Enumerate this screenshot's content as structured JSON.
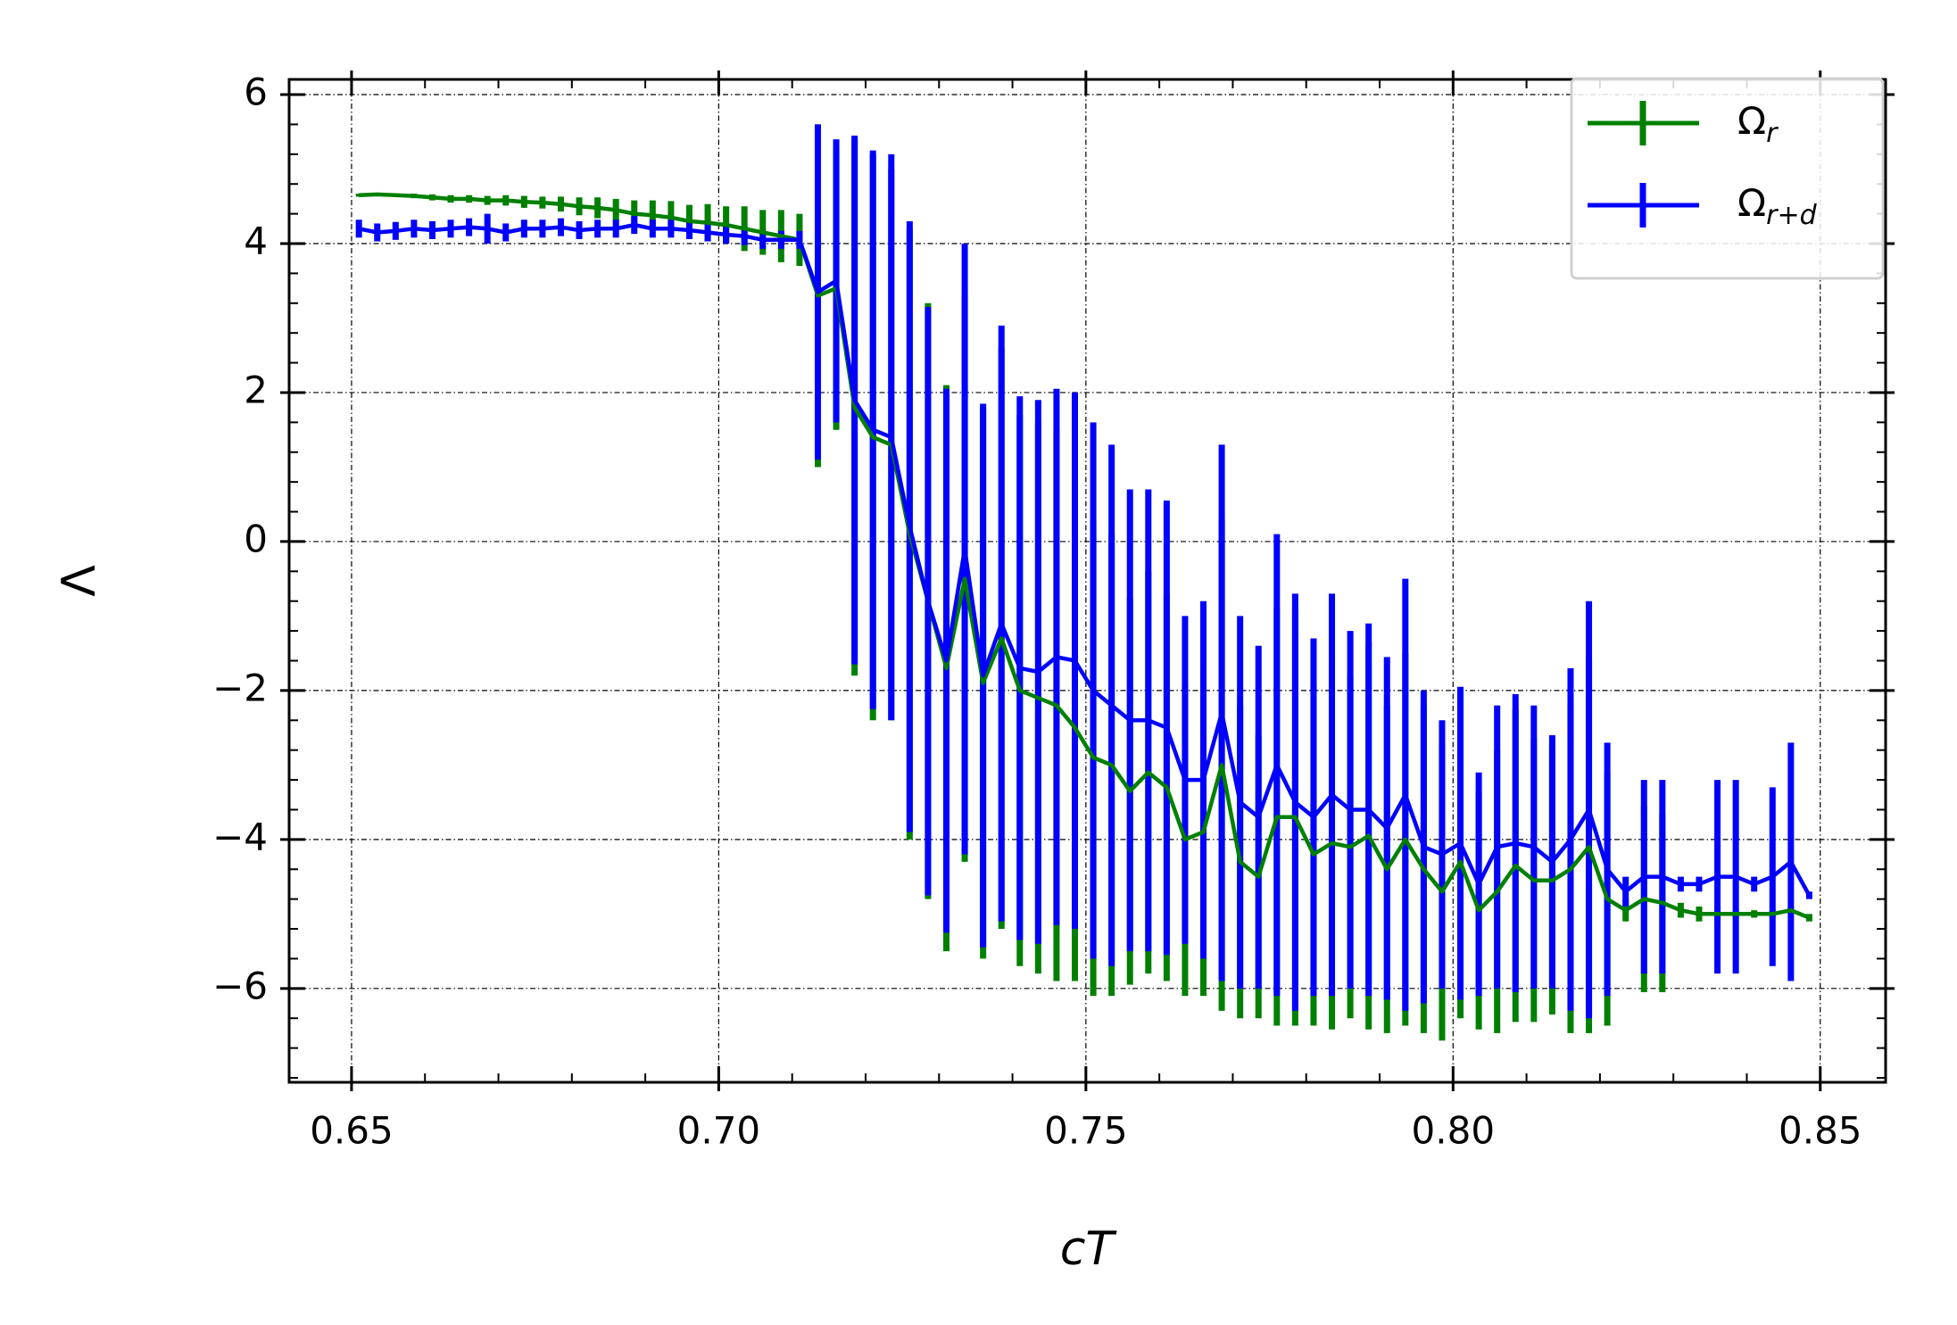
{
  "chart_data": {
    "type": "errorbar_line",
    "xlabel": "cT",
    "ylabel": "Λ",
    "xlim": [
      0.6415,
      0.8589
    ],
    "ylim": [
      -7.26,
      6.204
    ],
    "xticks": [
      0.65,
      {
        "value": 0.7,
        "label": "0.70"
      },
      0.75,
      {
        "value": 0.8,
        "label": "0.80"
      },
      0.85
    ],
    "yticks": [
      {
        "value": -6,
        "label": "−6"
      },
      {
        "value": -4,
        "label": "−4"
      },
      {
        "value": -2,
        "label": "−2"
      },
      0,
      2,
      4,
      6
    ],
    "grid": true,
    "legend": "upper right",
    "x": [
      0.651,
      0.6535,
      0.656,
      0.6585,
      0.661,
      0.6635,
      0.666,
      0.6685,
      0.671,
      0.6735,
      0.676,
      0.6785,
      0.681,
      0.6835,
      0.686,
      0.6885,
      0.691,
      0.6935,
      0.696,
      0.6985,
      0.701,
      0.7035,
      0.706,
      0.7085,
      0.711,
      0.7135,
      0.716,
      0.7185,
      0.721,
      0.7235,
      0.726,
      0.7285,
      0.731,
      0.7335,
      0.736,
      0.7385,
      0.741,
      0.7435,
      0.746,
      0.7485,
      0.751,
      0.7535,
      0.756,
      0.7585,
      0.761,
      0.7635,
      0.766,
      0.7685,
      0.771,
      0.7735,
      0.776,
      0.7785,
      0.781,
      0.7835,
      0.786,
      0.7885,
      0.791,
      0.7935,
      0.796,
      0.7985,
      0.801,
      0.8035,
      0.806,
      0.8085,
      0.811,
      0.8135,
      0.816,
      0.8185,
      0.821,
      0.8235,
      0.826,
      0.8285,
      0.831,
      0.8335,
      0.836,
      0.8385,
      0.841,
      0.8435,
      0.846,
      0.8485
    ],
    "series": [
      {
        "name": "Ωr",
        "color": "#008000",
        "values": [
          4.65,
          4.66,
          4.65,
          4.64,
          4.62,
          4.6,
          4.6,
          4.58,
          4.58,
          4.56,
          4.55,
          4.53,
          4.5,
          4.48,
          4.45,
          4.4,
          4.38,
          4.35,
          4.3,
          4.28,
          4.25,
          4.2,
          4.15,
          4.1,
          4.05,
          3.3,
          3.4,
          1.8,
          1.4,
          1.3,
          0.1,
          -0.8,
          -1.7,
          -0.5,
          -1.9,
          -1.3,
          -2.0,
          -2.1,
          -2.2,
          -2.5,
          -2.9,
          -3.0,
          -3.35,
          -3.1,
          -3.3,
          -4.0,
          -3.9,
          -3.0,
          -4.3,
          -4.5,
          -3.7,
          -3.7,
          -4.2,
          -4.05,
          -4.1,
          -3.95,
          -4.4,
          -4.0,
          -4.4,
          -4.7,
          -4.3,
          -4.95,
          -4.7,
          -4.35,
          -4.55,
          -4.55,
          -4.4,
          -4.1,
          -4.8,
          -4.95,
          -4.8,
          -4.85,
          -4.95,
          -5.0,
          -5.0,
          -5.0,
          -5.0,
          -5.0,
          -4.95,
          -5.05
        ],
        "errors": [
          0.02,
          0.02,
          0.02,
          0.03,
          0.04,
          0.05,
          0.05,
          0.06,
          0.07,
          0.08,
          0.08,
          0.1,
          0.12,
          0.14,
          0.15,
          0.18,
          0.2,
          0.22,
          0.22,
          0.25,
          0.25,
          0.3,
          0.3,
          0.35,
          0.35,
          2.3,
          1.9,
          3.6,
          3.8,
          3.7,
          4.1,
          4.0,
          3.8,
          3.8,
          3.7,
          3.9,
          3.7,
          3.7,
          3.7,
          3.4,
          3.2,
          3.1,
          2.6,
          2.7,
          2.6,
          2.1,
          2.2,
          3.3,
          2.1,
          1.9,
          2.8,
          2.8,
          2.3,
          2.5,
          2.3,
          2.6,
          2.2,
          2.5,
          2.2,
          2.0,
          2.1,
          1.6,
          1.9,
          2.1,
          1.9,
          1.8,
          2.2,
          2.5,
          1.7,
          0.15,
          1.25,
          1.2,
          0.1,
          0.1,
          0.1,
          0.05,
          0.05,
          0.05,
          0.05,
          0.05
        ]
      },
      {
        "name": "Ωr+d",
        "color": "#0000ff",
        "values": [
          4.2,
          4.15,
          4.17,
          4.2,
          4.18,
          4.2,
          4.22,
          4.2,
          4.15,
          4.2,
          4.2,
          4.22,
          4.18,
          4.2,
          4.2,
          4.25,
          4.2,
          4.2,
          4.18,
          4.15,
          4.12,
          4.1,
          4.05,
          4.05,
          4.05,
          3.35,
          3.5,
          1.9,
          1.5,
          1.4,
          0.2,
          -0.8,
          -1.6,
          -0.1,
          -1.8,
          -1.1,
          -1.7,
          -1.75,
          -1.55,
          -1.6,
          -2.0,
          -2.2,
          -2.4,
          -2.4,
          -2.5,
          -3.2,
          -3.2,
          -2.3,
          -3.5,
          -3.7,
          -3.0,
          -3.5,
          -3.7,
          -3.4,
          -3.6,
          -3.6,
          -3.85,
          -3.4,
          -4.1,
          -4.2,
          -4.05,
          -4.6,
          -4.1,
          -4.05,
          -4.1,
          -4.3,
          -4.0,
          -3.6,
          -4.4,
          -4.7,
          -4.5,
          -4.5,
          -4.6,
          -4.6,
          -4.5,
          -4.5,
          -4.6,
          -4.5,
          -4.3,
          -4.75
        ],
        "errors": [
          0.12,
          0.12,
          0.12,
          0.12,
          0.12,
          0.12,
          0.12,
          0.2,
          0.12,
          0.12,
          0.12,
          0.12,
          0.12,
          0.12,
          0.12,
          0.12,
          0.12,
          0.12,
          0.12,
          0.12,
          0.12,
          0.12,
          0.12,
          0.12,
          0.12,
          2.25,
          1.9,
          3.55,
          3.75,
          3.8,
          4.1,
          3.95,
          3.65,
          4.1,
          3.65,
          4.0,
          3.65,
          3.65,
          3.6,
          3.6,
          3.6,
          3.5,
          3.1,
          3.1,
          3.05,
          2.2,
          2.4,
          3.6,
          2.5,
          2.3,
          3.1,
          2.8,
          2.4,
          2.7,
          2.4,
          2.5,
          2.3,
          2.9,
          2.1,
          1.8,
          2.1,
          1.5,
          1.9,
          2.0,
          1.9,
          1.7,
          2.3,
          2.8,
          1.7,
          0.2,
          1.3,
          1.3,
          0.1,
          0.1,
          1.3,
          1.3,
          0.1,
          1.2,
          1.6,
          0.05
        ]
      }
    ]
  }
}
